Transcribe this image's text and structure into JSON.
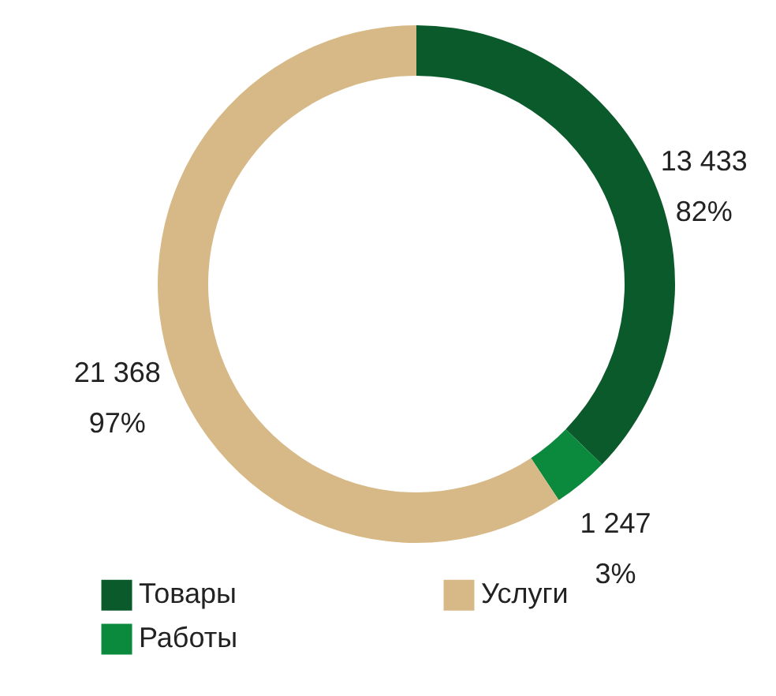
{
  "chart_data": {
    "type": "donut",
    "categories": [
      "Товары",
      "Работы",
      "Услуги"
    ],
    "values": [
      13433,
      1247,
      21368
    ],
    "colors": [
      "#0b5a2b",
      "#0b8a3e",
      "#d7b987"
    ],
    "value_labels": [
      "13 433\n82%",
      "1 247\n3%",
      "21 368\n97%"
    ],
    "legend": "bottom"
  }
}
